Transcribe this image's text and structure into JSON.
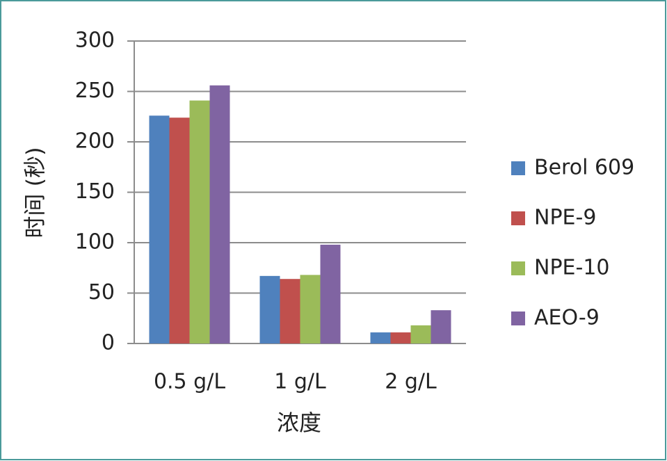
{
  "chart_data": {
    "type": "bar",
    "x_label": "浓度",
    "y_label": "时间 (秒)",
    "categories": [
      "0.5 g/L",
      "1 g/L",
      "2 g/L"
    ],
    "series": [
      {
        "name": "Berol 609",
        "color": "#4f81bd",
        "values": [
          226,
          67,
          11
        ]
      },
      {
        "name": "NPE-9",
        "color": "#c0504d",
        "values": [
          224,
          64,
          11
        ]
      },
      {
        "name": "NPE-10",
        "color": "#9bbb59",
        "values": [
          241,
          68,
          18
        ]
      },
      {
        "name": "AEO-9",
        "color": "#8064a2",
        "values": [
          256,
          98,
          33
        ]
      }
    ],
    "ylim": [
      0,
      300
    ],
    "yticks": [
      0,
      50,
      100,
      150,
      200,
      250,
      300
    ],
    "grid": true,
    "legend": "right"
  }
}
